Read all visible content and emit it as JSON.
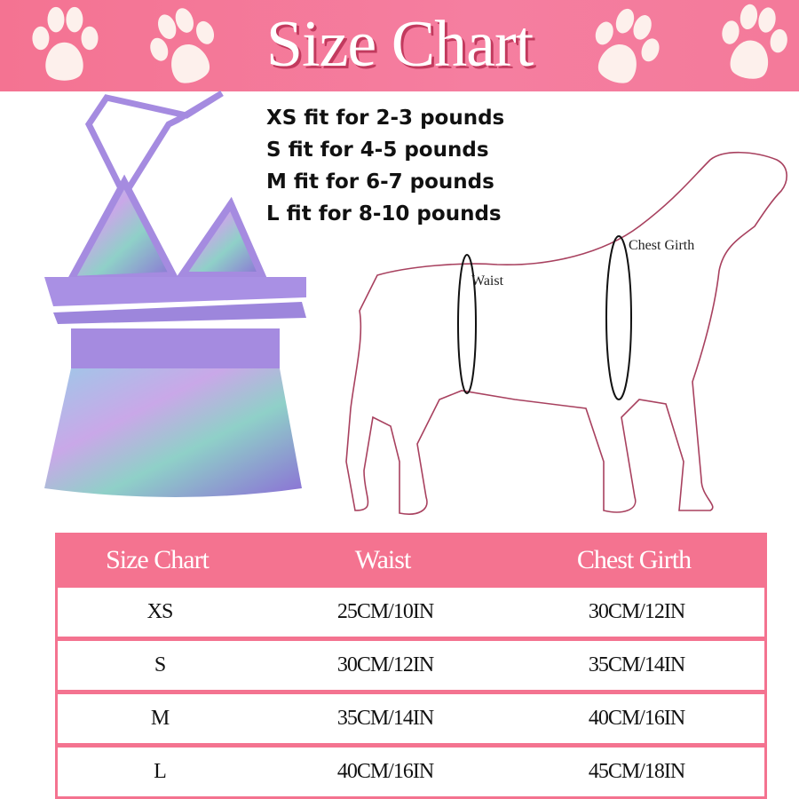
{
  "banner": {
    "title": "Size Chart",
    "icon": "paw-print-icon",
    "color": "#f47392"
  },
  "fits": [
    "XS fit for 2-3 pounds",
    "S fit for 4-5 pounds",
    "M fit for 6-7 pounds",
    "L fit for 8-10 pounds"
  ],
  "diagram": {
    "waist_label": "Waist",
    "chest_label": "Chest Girth"
  },
  "table": {
    "headers": [
      "Size Chart",
      "Waist",
      "Chest Girth"
    ],
    "rows": [
      [
        "XS",
        "25CM/10IN",
        "30CM/12IN"
      ],
      [
        "S",
        "30CM/12IN",
        "35CM/14IN"
      ],
      [
        "M",
        "35CM/14IN",
        "40CM/16IN"
      ],
      [
        "L",
        "40CM/16IN",
        "45CM/18IN"
      ]
    ]
  }
}
